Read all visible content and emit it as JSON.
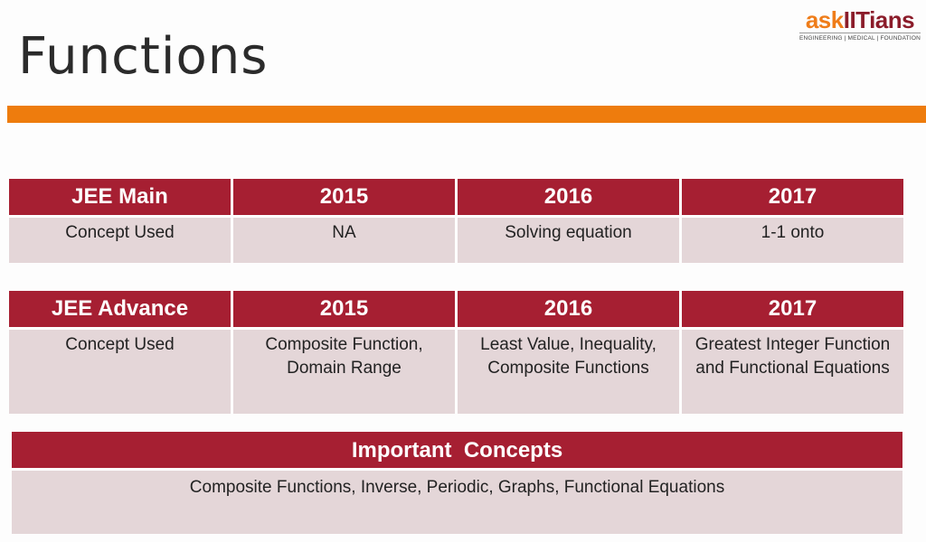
{
  "title": "Functions",
  "logo": {
    "ask": "ask",
    "iit": "IITians",
    "tagline": "ENGINEERING | MEDICAL | FOUNDATION"
  },
  "jee_main": {
    "headers": [
      "JEE Main",
      "2015",
      "2016",
      "2017"
    ],
    "row": [
      "Concept Used",
      "NA",
      "Solving equation",
      "1-1 onto"
    ]
  },
  "jee_advance": {
    "headers": [
      "JEE Advance",
      "2015",
      "2016",
      "2017"
    ],
    "row": [
      "Concept Used",
      "Composite Function, Domain Range",
      "Least Value, Inequality, Composite Functions",
      "Greatest Integer Function and Functional Equations"
    ]
  },
  "important": {
    "heading": "Important  Concepts",
    "text": "Composite Functions, Inverse, Periodic, Graphs, Functional Equations"
  },
  "colors": {
    "header_red": "#a61f32",
    "cell_pink": "#e4d6d8",
    "orange": "#ee7c0d"
  }
}
